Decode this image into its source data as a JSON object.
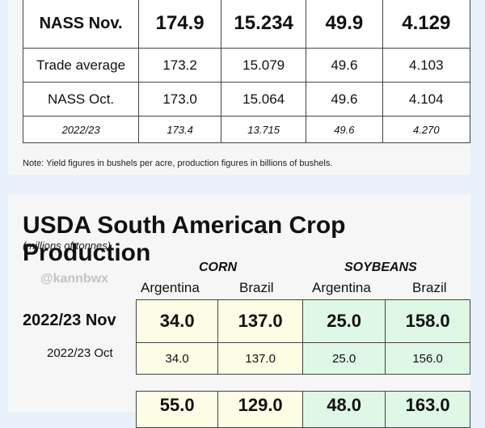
{
  "us_table": {
    "rows": [
      {
        "label": "NASS Nov.",
        "values": [
          "174.9",
          "15.234",
          "49.9",
          "4.129"
        ]
      },
      {
        "label": "Trade average",
        "values": [
          "173.2",
          "15.079",
          "49.6",
          "4.103"
        ]
      },
      {
        "label": "NASS Oct.",
        "values": [
          "173.0",
          "15.064",
          "49.6",
          "4.104"
        ]
      },
      {
        "label": "2022/23",
        "values": [
          "173.4",
          "13.715",
          "49.6",
          "4.270"
        ]
      }
    ],
    "note": "Note: Yield figures in bushels per acre, production figures in billions of bushels."
  },
  "south_america": {
    "title": "USDA South American Crop Production",
    "subtitle": "(millions of tonnes)",
    "watermark": "@kannbwx",
    "crops": {
      "corn": "CORN",
      "soybeans": "SOYBEANS"
    },
    "countries": [
      "Argentina",
      "Brazil",
      "Argentina",
      "Brazil"
    ],
    "rows": [
      {
        "label": "2022/23 Nov",
        "values": [
          "34.0",
          "137.0",
          "25.0",
          "158.0"
        ]
      },
      {
        "label": "2022/23 Oct",
        "values": [
          "34.0",
          "137.0",
          "25.0",
          "156.0"
        ]
      }
    ],
    "partial_row_values": [
      "55.0",
      "129.0",
      "48.0",
      "163.0"
    ]
  }
}
